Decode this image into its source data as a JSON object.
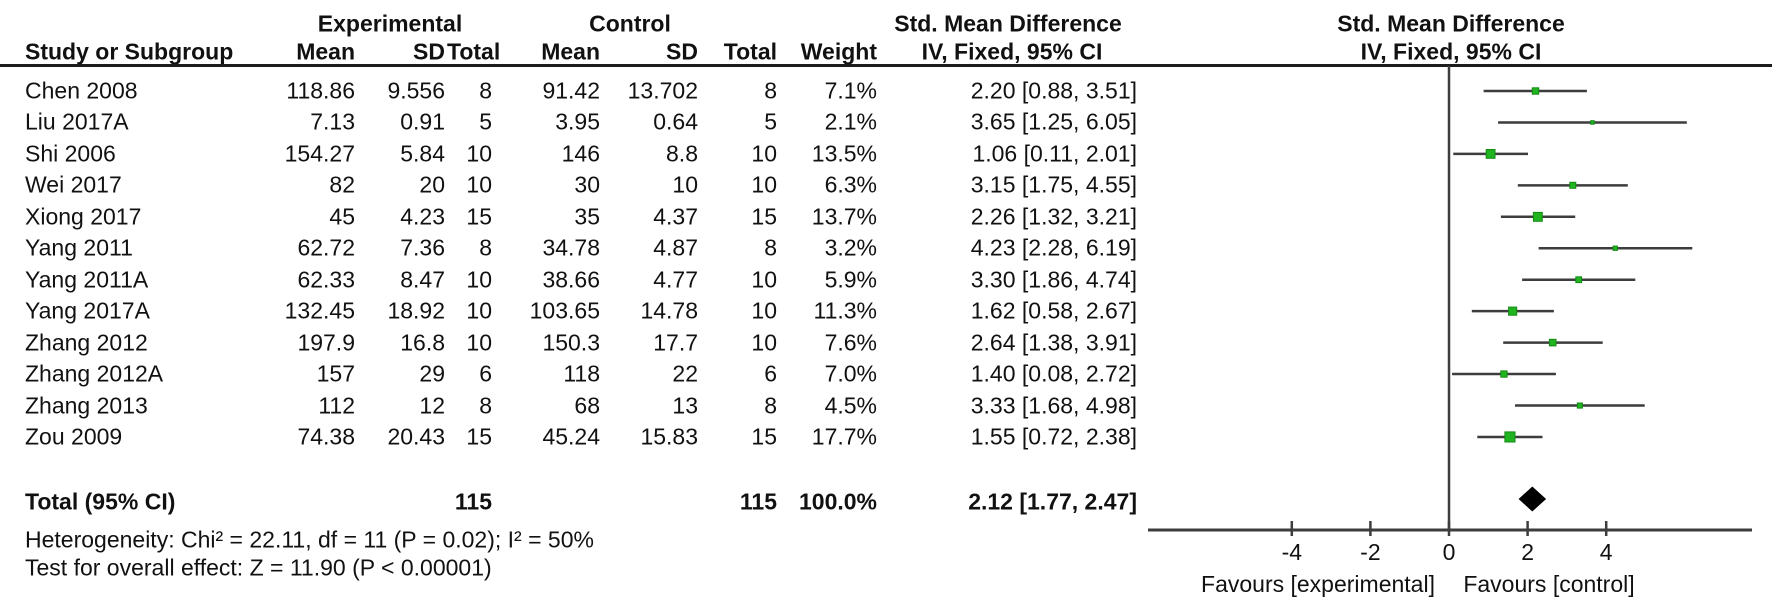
{
  "table": {
    "group_headers": {
      "experimental": "Experimental",
      "control": "Control",
      "smd_text": "Std. Mean Difference",
      "smd_plot": "Std. Mean Difference"
    },
    "col_headers": {
      "study": "Study or Subgroup",
      "mean_exp": "Mean",
      "sd_exp": "SD",
      "total_exp": "Total",
      "mean_ctrl": "Mean",
      "sd_ctrl": "SD",
      "total_ctrl": "Total",
      "weight": "Weight",
      "ci_text": "IV, Fixed, 95% CI",
      "ci_plot": "IV, Fixed, 95% CI"
    },
    "rows": [
      {
        "study": "Chen 2008",
        "mean_exp": "118.86",
        "sd_exp": "9.556",
        "total_exp": "8",
        "mean_ctrl": "91.42",
        "sd_ctrl": "13.702",
        "total_ctrl": "8",
        "weight": "7.1%",
        "ci_text": "2.20 [0.88, 3.51]",
        "est": 2.2,
        "lo": 0.88,
        "hi": 3.51,
        "w": 7.1
      },
      {
        "study": "Liu 2017A",
        "mean_exp": "7.13",
        "sd_exp": "0.91",
        "total_exp": "5",
        "mean_ctrl": "3.95",
        "sd_ctrl": "0.64",
        "total_ctrl": "5",
        "weight": "2.1%",
        "ci_text": "3.65 [1.25, 6.05]",
        "est": 3.65,
        "lo": 1.25,
        "hi": 6.05,
        "w": 2.1
      },
      {
        "study": "Shi 2006",
        "mean_exp": "154.27",
        "sd_exp": "5.84",
        "total_exp": "10",
        "mean_ctrl": "146",
        "sd_ctrl": "8.8",
        "total_ctrl": "10",
        "weight": "13.5%",
        "ci_text": "1.06 [0.11, 2.01]",
        "est": 1.06,
        "lo": 0.11,
        "hi": 2.01,
        "w": 13.5
      },
      {
        "study": "Wei 2017",
        "mean_exp": "82",
        "sd_exp": "20",
        "total_exp": "10",
        "mean_ctrl": "30",
        "sd_ctrl": "10",
        "total_ctrl": "10",
        "weight": "6.3%",
        "ci_text": "3.15 [1.75, 4.55]",
        "est": 3.15,
        "lo": 1.75,
        "hi": 4.55,
        "w": 6.3
      },
      {
        "study": "Xiong 2017",
        "mean_exp": "45",
        "sd_exp": "4.23",
        "total_exp": "15",
        "mean_ctrl": "35",
        "sd_ctrl": "4.37",
        "total_ctrl": "15",
        "weight": "13.7%",
        "ci_text": "2.26 [1.32, 3.21]",
        "est": 2.26,
        "lo": 1.32,
        "hi": 3.21,
        "w": 13.7
      },
      {
        "study": "Yang 2011",
        "mean_exp": "62.72",
        "sd_exp": "7.36",
        "total_exp": "8",
        "mean_ctrl": "34.78",
        "sd_ctrl": "4.87",
        "total_ctrl": "8",
        "weight": "3.2%",
        "ci_text": "4.23 [2.28, 6.19]",
        "est": 4.23,
        "lo": 2.28,
        "hi": 6.19,
        "w": 3.2
      },
      {
        "study": "Yang 2011A",
        "mean_exp": "62.33",
        "sd_exp": "8.47",
        "total_exp": "10",
        "mean_ctrl": "38.66",
        "sd_ctrl": "4.77",
        "total_ctrl": "10",
        "weight": "5.9%",
        "ci_text": "3.30 [1.86, 4.74]",
        "est": 3.3,
        "lo": 1.86,
        "hi": 4.74,
        "w": 5.9
      },
      {
        "study": "Yang 2017A",
        "mean_exp": "132.45",
        "sd_exp": "18.92",
        "total_exp": "10",
        "mean_ctrl": "103.65",
        "sd_ctrl": "14.78",
        "total_ctrl": "10",
        "weight": "11.3%",
        "ci_text": "1.62 [0.58, 2.67]",
        "est": 1.62,
        "lo": 0.58,
        "hi": 2.67,
        "w": 11.3
      },
      {
        "study": "Zhang 2012",
        "mean_exp": "197.9",
        "sd_exp": "16.8",
        "total_exp": "10",
        "mean_ctrl": "150.3",
        "sd_ctrl": "17.7",
        "total_ctrl": "10",
        "weight": "7.6%",
        "ci_text": "2.64 [1.38, 3.91]",
        "est": 2.64,
        "lo": 1.38,
        "hi": 3.91,
        "w": 7.6
      },
      {
        "study": "Zhang 2012A",
        "mean_exp": "157",
        "sd_exp": "29",
        "total_exp": "6",
        "mean_ctrl": "118",
        "sd_ctrl": "22",
        "total_ctrl": "6",
        "weight": "7.0%",
        "ci_text": "1.40 [0.08, 2.72]",
        "est": 1.4,
        "lo": 0.08,
        "hi": 2.72,
        "w": 7.0
      },
      {
        "study": "Zhang 2013",
        "mean_exp": "112",
        "sd_exp": "12",
        "total_exp": "8",
        "mean_ctrl": "68",
        "sd_ctrl": "13",
        "total_ctrl": "8",
        "weight": "4.5%",
        "ci_text": "3.33 [1.68, 4.98]",
        "est": 3.33,
        "lo": 1.68,
        "hi": 4.98,
        "w": 4.5
      },
      {
        "study": "Zou 2009",
        "mean_exp": "74.38",
        "sd_exp": "20.43",
        "total_exp": "15",
        "mean_ctrl": "45.24",
        "sd_ctrl": "15.83",
        "total_ctrl": "15",
        "weight": "17.7%",
        "ci_text": "1.55 [0.72, 2.38]",
        "est": 1.55,
        "lo": 0.72,
        "hi": 2.38,
        "w": 17.7
      }
    ],
    "total_row": {
      "label": "Total (95% CI)",
      "total_exp": "115",
      "total_ctrl": "115",
      "weight": "100.0%",
      "ci_text": "2.12 [1.77, 2.47]",
      "est": 2.12,
      "lo": 1.77,
      "hi": 2.47
    },
    "heterogeneity": "Heterogeneity: Chi² = 22.11, df = 11 (P = 0.02); I² = 50%",
    "overall_effect": "Test for overall effect: Z = 11.90 (P < 0.00001)"
  },
  "plot": {
    "ticks": [
      -4,
      -2,
      0,
      2,
      4
    ],
    "tick_labels": [
      "-4",
      "-2",
      "0",
      "2",
      "4"
    ],
    "favours_left": "Favours [experimental]",
    "favours_right": "Favours [control]",
    "colors": {
      "marker_fill": "#21b421",
      "marker_border": "#128a12",
      "line": "#3d3d3d",
      "diamond": "#000000",
      "text": "#111111"
    }
  },
  "chart_data": {
    "type": "scatter",
    "subtype": "forest-plot-meta-analysis",
    "title": "Std. Mean Difference",
    "model": "IV, Fixed, 95% CI",
    "studies": [
      "Chen 2008",
      "Liu 2017A",
      "Shi 2006",
      "Wei 2017",
      "Xiong 2017",
      "Yang 2011",
      "Yang 2011A",
      "Yang 2017A",
      "Zhang 2012",
      "Zhang 2012A",
      "Zhang 2013",
      "Zou 2009"
    ],
    "estimates": [
      2.2,
      3.65,
      1.06,
      3.15,
      2.26,
      4.23,
      3.3,
      1.62,
      2.64,
      1.4,
      3.33,
      1.55
    ],
    "ci_lower": [
      0.88,
      1.25,
      0.11,
      1.75,
      1.32,
      2.28,
      1.86,
      0.58,
      1.38,
      0.08,
      1.68,
      0.72
    ],
    "ci_upper": [
      3.51,
      6.05,
      2.01,
      4.55,
      3.21,
      6.19,
      4.74,
      2.67,
      3.91,
      2.72,
      4.98,
      2.38
    ],
    "weights_pct": [
      7.1,
      2.1,
      13.5,
      6.3,
      13.7,
      3.2,
      5.9,
      11.3,
      7.6,
      7.0,
      4.5,
      17.7
    ],
    "experimental": {
      "means": [
        118.86,
        7.13,
        154.27,
        82,
        45,
        62.72,
        62.33,
        132.45,
        197.9,
        157,
        112,
        74.38
      ],
      "sds": [
        9.556,
        0.91,
        5.84,
        20,
        4.23,
        7.36,
        8.47,
        18.92,
        16.8,
        29,
        12,
        20.43
      ],
      "totals": [
        8,
        5,
        10,
        10,
        15,
        8,
        10,
        10,
        10,
        6,
        8,
        15
      ]
    },
    "control": {
      "means": [
        91.42,
        3.95,
        146,
        30,
        35,
        34.78,
        38.66,
        103.65,
        150.3,
        118,
        68,
        45.24
      ],
      "sds": [
        13.702,
        0.64,
        8.8,
        10,
        4.37,
        4.87,
        4.77,
        14.78,
        17.7,
        22,
        13,
        15.83
      ],
      "totals": [
        8,
        5,
        10,
        10,
        15,
        8,
        10,
        10,
        10,
        6,
        8,
        15
      ]
    },
    "total": {
      "estimate": 2.12,
      "ci_lower": 1.77,
      "ci_upper": 2.47,
      "n_experimental": 115,
      "n_control": 115,
      "weight_pct": 100.0
    },
    "heterogeneity": {
      "chi2": 22.11,
      "df": 11,
      "p": 0.02,
      "i2_pct": 50
    },
    "overall_effect": {
      "z": 11.9,
      "p": "< 0.00001"
    },
    "x_axis": {
      "ticks": [
        -4,
        -2,
        0,
        2,
        4
      ],
      "label_left": "Favours [experimental]",
      "label_right": "Favours [control]",
      "grid": false
    }
  }
}
